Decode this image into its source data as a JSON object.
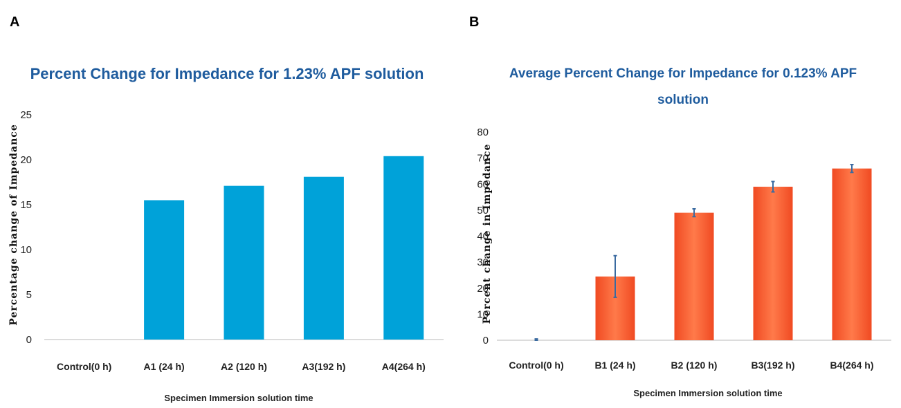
{
  "chart_data": [
    {
      "type": "bar",
      "panel_label": "A",
      "title": "Percent Change for Impedance for 1.23% APF solution",
      "xlabel": "Specimen Immersion solution time",
      "ylabel": "Percentage change of Impedance",
      "categories": [
        "Control(0 h)",
        "A1 (24 h)",
        "A2 (120 h)",
        "A3(192 h)",
        "A4(264 h)"
      ],
      "values": [
        0,
        15.5,
        17.1,
        18.1,
        20.4
      ],
      "ylim": [
        0,
        25
      ],
      "yticks": [
        0,
        5,
        10,
        15,
        20,
        25
      ],
      "color": "#00a2d9",
      "grid": false,
      "legend": false
    },
    {
      "type": "bar",
      "panel_label": "B",
      "title": [
        "Average Percent Change for Impedance for 0.123% APF",
        "solution"
      ],
      "xlabel": "Specimen Immersion solution time",
      "ylabel": "Percent change in Impedance",
      "categories": [
        "Control(0 h)",
        "B1 (24 h)",
        "B2 (120 h)",
        "B3(192 h)",
        "B4(264 h)"
      ],
      "values": [
        0,
        24.5,
        49,
        59,
        66
      ],
      "error": [
        0.5,
        8,
        1.5,
        2,
        1.5
      ],
      "ylim": [
        0,
        80
      ],
      "yticks": [
        0,
        10,
        20,
        30,
        40,
        50,
        60,
        70,
        80
      ],
      "color": "#ff6a3d",
      "color_light": "#f04a22",
      "error_color": "#3a6aa0",
      "grid": false,
      "legend": false
    }
  ]
}
